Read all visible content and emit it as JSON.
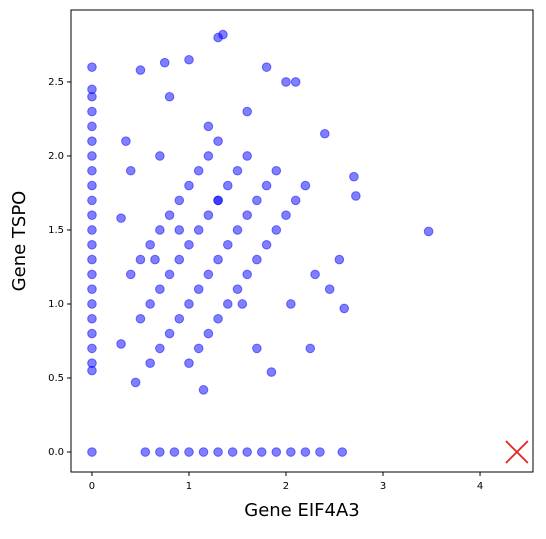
{
  "chart_data": {
    "type": "scatter",
    "xlabel": "Gene EIF4A3",
    "ylabel": "Gene TSPO",
    "xlim": [
      -0.216,
      4.546
    ],
    "ylim": [
      -0.135,
      2.986
    ],
    "xticks": [
      0,
      1,
      2,
      3,
      4
    ],
    "yticks": [
      {
        "value": 0,
        "label": "0.0"
      },
      {
        "value": 0.5,
        "label": "0.5"
      },
      {
        "value": 1,
        "label": "1.0"
      },
      {
        "value": 1.5,
        "label": "1.5"
      },
      {
        "value": 2,
        "label": "2.0"
      },
      {
        "value": 2.5,
        "label": "2.5"
      }
    ],
    "series": [
      {
        "color": "#0000ff",
        "marker": "o",
        "x": [
          0,
          0,
          0,
          0,
          0,
          0,
          0,
          0,
          0,
          0,
          0,
          0,
          0,
          0,
          0,
          0,
          0,
          0,
          0,
          0,
          0,
          0,
          0,
          0.55,
          0.7,
          0.85,
          1.0,
          1.15,
          1.3,
          1.45,
          1.6,
          1.75,
          1.9,
          2.05,
          2.2,
          2.35,
          2.58,
          1.0,
          1.1,
          1.2,
          1.3,
          1.4,
          1.5,
          1.6,
          1.7,
          1.8,
          1.9,
          2.0,
          2.1,
          0.6,
          0.7,
          0.8,
          0.9,
          1.0,
          1.1,
          1.2,
          1.3,
          1.4,
          1.5,
          1.6,
          1.7,
          1.8,
          1.9,
          0.5,
          0.6,
          0.7,
          0.8,
          0.9,
          1.0,
          1.1,
          1.2,
          1.3,
          1.4,
          1.5,
          1.6,
          0.4,
          0.5,
          0.6,
          0.7,
          0.8,
          0.9,
          1.0,
          1.1,
          1.2,
          1.3,
          0.8,
          1.0,
          1.3,
          1.35,
          0.75,
          0.5,
          2.0,
          2.1,
          1.8,
          2.4,
          2.7,
          2.72,
          2.6,
          3.47,
          2.55,
          0.3,
          0.45,
          1.15,
          1.85,
          2.25,
          0.3,
          0.35,
          0.4,
          2.3,
          2.45,
          2.2,
          1.6,
          1.2,
          0.7,
          0.9,
          1.55,
          2.05,
          0.65,
          1.7,
          1.3
        ],
        "y": [
          0,
          0.55,
          0.6,
          0.7,
          0.8,
          0.9,
          1.0,
          1.1,
          1.2,
          1.3,
          1.4,
          1.5,
          1.6,
          1.7,
          1.8,
          1.9,
          2.0,
          2.1,
          2.2,
          2.3,
          2.4,
          2.45,
          2.6,
          0,
          0,
          0,
          0,
          0,
          0,
          0,
          0,
          0,
          0,
          0,
          0,
          0,
          0,
          0.6,
          0.7,
          0.8,
          0.9,
          1.0,
          1.1,
          1.2,
          1.3,
          1.4,
          1.5,
          1.6,
          1.7,
          0.6,
          0.7,
          0.8,
          0.9,
          1.0,
          1.1,
          1.2,
          1.3,
          1.4,
          1.5,
          1.6,
          1.7,
          1.8,
          1.9,
          0.9,
          1.0,
          1.1,
          1.2,
          1.3,
          1.4,
          1.5,
          1.6,
          1.7,
          1.8,
          1.9,
          2.0,
          1.2,
          1.3,
          1.4,
          1.5,
          1.6,
          1.7,
          1.8,
          1.9,
          2.0,
          2.1,
          2.4,
          2.65,
          2.8,
          2.82,
          2.63,
          2.58,
          2.5,
          2.5,
          2.6,
          2.15,
          1.86,
          1.73,
          0.97,
          1.49,
          1.3,
          0.73,
          0.47,
          0.42,
          0.54,
          0.7,
          1.58,
          2.1,
          1.9,
          1.2,
          1.1,
          1.8,
          2.3,
          2.2,
          2.0,
          1.5,
          1.0,
          1.0,
          1.3,
          0.7,
          1.7
        ]
      },
      {
        "color": "#e8241c",
        "marker": "x",
        "x": [
          4.38
        ],
        "y": [
          0
        ]
      }
    ]
  }
}
